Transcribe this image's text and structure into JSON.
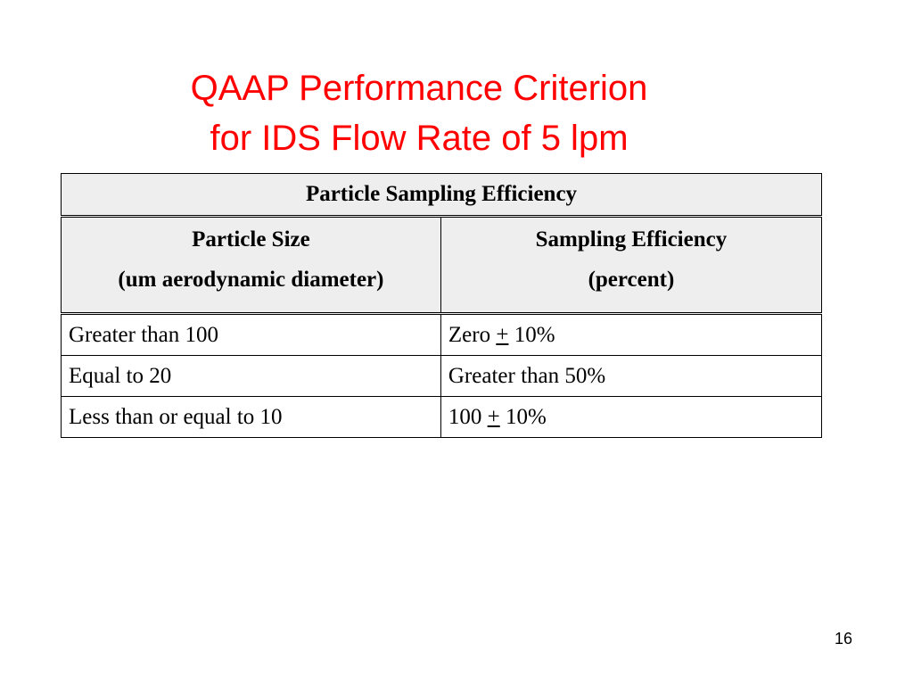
{
  "slide": {
    "title_line1": "QAAP Performance Criterion",
    "title_line2": "for IDS Flow Rate of 5 lpm",
    "page_number": "16"
  },
  "table": {
    "caption": "Particle Sampling Efficiency",
    "headers": [
      {
        "line1": "Particle Size",
        "line2": "(um aerodynamic diameter)"
      },
      {
        "line1": "Sampling Efficiency",
        "line2": "(percent)"
      }
    ],
    "rows": [
      {
        "size": "Greater than 100",
        "eff_pre": "Zero ",
        "eff_sym": "+",
        "eff_post": " 10%"
      },
      {
        "size": "Equal to 20",
        "eff_pre": "Greater than 50%",
        "eff_sym": "",
        "eff_post": ""
      },
      {
        "size": "Less than or equal to 10",
        "eff_pre": "100 ",
        "eff_sym": "+",
        "eff_post": " 10%"
      }
    ]
  }
}
